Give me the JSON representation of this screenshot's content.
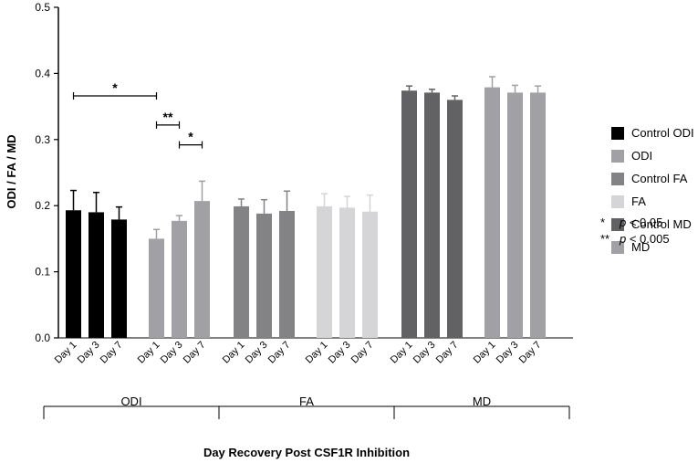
{
  "chart_data": {
    "type": "bar",
    "ylabel": "ODI / FA / MD",
    "xlabel": "Day Recovery Post CSF1R Inhibition",
    "ylim": [
      0,
      0.5
    ],
    "yticks": [
      "0.0",
      "0.1",
      "0.2",
      "0.3",
      "0.4",
      "0.5"
    ],
    "ytick_values": [
      0,
      0.1,
      0.2,
      0.3,
      0.4,
      0.5
    ],
    "categories": [
      "Day 1",
      "Day 3",
      "Day 7"
    ],
    "groups": [
      {
        "label": "ODI",
        "series": [
          0,
          1
        ]
      },
      {
        "label": "FA",
        "series": [
          2,
          3
        ]
      },
      {
        "label": "MD",
        "series": [
          4,
          5
        ]
      }
    ],
    "series": [
      {
        "name": "Control ODI",
        "color": "#000000",
        "values": [
          0.193,
          0.19,
          0.179
        ],
        "errors": [
          0.03,
          0.03,
          0.019
        ]
      },
      {
        "name": "ODI",
        "color": "#a0a0a5",
        "values": [
          0.15,
          0.177,
          0.207
        ],
        "errors": [
          0.014,
          0.008,
          0.03
        ]
      },
      {
        "name": "Control FA",
        "color": "#838385",
        "values": [
          0.199,
          0.188,
          0.192
        ],
        "errors": [
          0.011,
          0.021,
          0.03
        ]
      },
      {
        "name": "FA",
        "color": "#d5d5d7",
        "values": [
          0.199,
          0.197,
          0.191
        ],
        "errors": [
          0.019,
          0.017,
          0.025
        ]
      },
      {
        "name": "Control MD",
        "color": "#626264",
        "values": [
          0.374,
          0.371,
          0.36
        ],
        "errors": [
          0.007,
          0.005,
          0.006
        ]
      },
      {
        "name": "MD",
        "color": "#a0a0a5",
        "values": [
          0.379,
          0.371,
          0.371
        ],
        "errors": [
          0.016,
          0.011,
          0.01
        ]
      }
    ],
    "significance_brackets": [
      {
        "from": [
          0,
          0
        ],
        "to": [
          1,
          0
        ],
        "y": 0.366,
        "label": "*"
      },
      {
        "from": [
          1,
          0
        ],
        "to": [
          1,
          1
        ],
        "y": 0.322,
        "label": "**"
      },
      {
        "from": [
          1,
          1
        ],
        "to": [
          1,
          2
        ],
        "y": 0.292,
        "label": "*"
      }
    ],
    "significance_key": [
      {
        "symbol": "*",
        "text": "p < 0.05",
        "p": "p",
        "rest": " < 0.05"
      },
      {
        "symbol": "**",
        "text": "p < 0.005",
        "p": "p",
        "rest": " < 0.005"
      }
    ]
  }
}
